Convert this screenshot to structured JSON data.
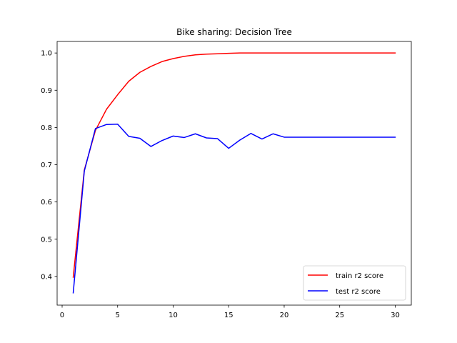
{
  "chart_data": {
    "type": "line",
    "title": "Bike sharing: Decision Tree",
    "xlabel": "",
    "ylabel": "",
    "xlim": [
      -0.45,
      31.45
    ],
    "ylim": [
      0.323,
      1.031
    ],
    "xticks": [
      0,
      5,
      10,
      15,
      20,
      25,
      30
    ],
    "yticks": [
      0.4,
      0.5,
      0.6,
      0.7,
      0.8,
      0.9,
      1.0
    ],
    "ytick_labels": [
      "0.4",
      "0.5",
      "0.6",
      "0.7",
      "0.8",
      "0.9",
      "1.0"
    ],
    "grid": false,
    "legend_position": "lower-right",
    "x": [
      1,
      2,
      3,
      4,
      5,
      6,
      7,
      8,
      9,
      10,
      11,
      12,
      13,
      14,
      15,
      16,
      17,
      18,
      19,
      20,
      21,
      22,
      23,
      24,
      25,
      26,
      27,
      28,
      29,
      30
    ],
    "series": [
      {
        "name": "train r2 score",
        "color": "#ff0000",
        "values": [
          0.398,
          0.686,
          0.792,
          0.849,
          0.888,
          0.924,
          0.948,
          0.964,
          0.977,
          0.985,
          0.991,
          0.995,
          0.997,
          0.998,
          0.999,
          1.0,
          1.0,
          1.0,
          1.0,
          1.0,
          1.0,
          1.0,
          1.0,
          1.0,
          1.0,
          1.0,
          1.0,
          1.0,
          1.0,
          1.0
        ]
      },
      {
        "name": "test r2 score",
        "color": "#0000ff",
        "values": [
          0.356,
          0.683,
          0.797,
          0.808,
          0.809,
          0.776,
          0.771,
          0.749,
          0.765,
          0.777,
          0.773,
          0.783,
          0.772,
          0.77,
          0.744,
          0.766,
          0.784,
          0.769,
          0.783,
          0.774,
          0.774,
          0.774,
          0.774,
          0.774,
          0.774,
          0.774,
          0.774,
          0.774,
          0.774,
          0.774
        ]
      }
    ]
  }
}
